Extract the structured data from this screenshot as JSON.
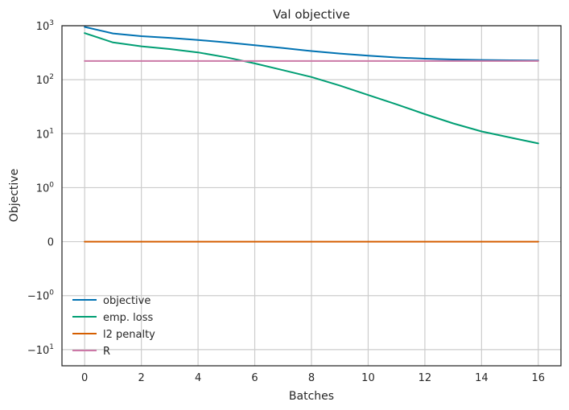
{
  "chart_data": {
    "type": "line",
    "title": "Val objective",
    "xlabel": "Batches",
    "ylabel": "Objective",
    "yscale": "symlog",
    "grid": true,
    "legend_position": "lower-left",
    "xlim": [
      -0.8,
      16.8
    ],
    "x_ticks": [
      "0",
      "2",
      "4",
      "6",
      "8",
      "10",
      "12",
      "14",
      "16"
    ],
    "y_ticks": [
      {
        "value": 1000,
        "base": "10",
        "exp": "3"
      },
      {
        "value": 100,
        "base": "10",
        "exp": "2"
      },
      {
        "value": 10,
        "base": "10",
        "exp": "1"
      },
      {
        "value": 1,
        "base": "10",
        "exp": "0"
      },
      {
        "value": 0,
        "base": "0",
        "exp": ""
      },
      {
        "value": -1,
        "base": "−10",
        "exp": "0"
      },
      {
        "value": -10,
        "base": "−10",
        "exp": "1"
      }
    ],
    "x": [
      0,
      1,
      2,
      3,
      4,
      5,
      6,
      7,
      8,
      9,
      10,
      11,
      12,
      13,
      14,
      15,
      16
    ],
    "series": [
      {
        "name": "objective",
        "color": "#0072b2",
        "values": [
          950,
          720,
          640,
          595,
          545,
          490,
          435,
          385,
          340,
          305,
          278,
          258,
          245,
          237,
          232,
          229,
          227
        ]
      },
      {
        "name": "emp. loss",
        "color": "#009e73",
        "values": [
          730,
          490,
          415,
          370,
          320,
          260,
          200,
          150,
          112,
          78,
          52,
          35,
          23,
          15.5,
          11,
          8.5,
          6.6
        ]
      },
      {
        "name": "l2 penalty",
        "color": "#d55e00",
        "values": [
          0,
          0,
          0,
          0,
          0,
          0,
          0,
          0,
          0,
          0,
          0,
          0,
          0,
          0,
          0,
          0,
          0
        ]
      },
      {
        "name": "R",
        "color": "#cc79a7",
        "values": [
          222,
          222,
          222,
          222,
          222,
          222,
          222,
          222,
          222,
          222,
          222,
          222,
          222,
          222,
          222,
          222,
          222
        ]
      }
    ]
  }
}
